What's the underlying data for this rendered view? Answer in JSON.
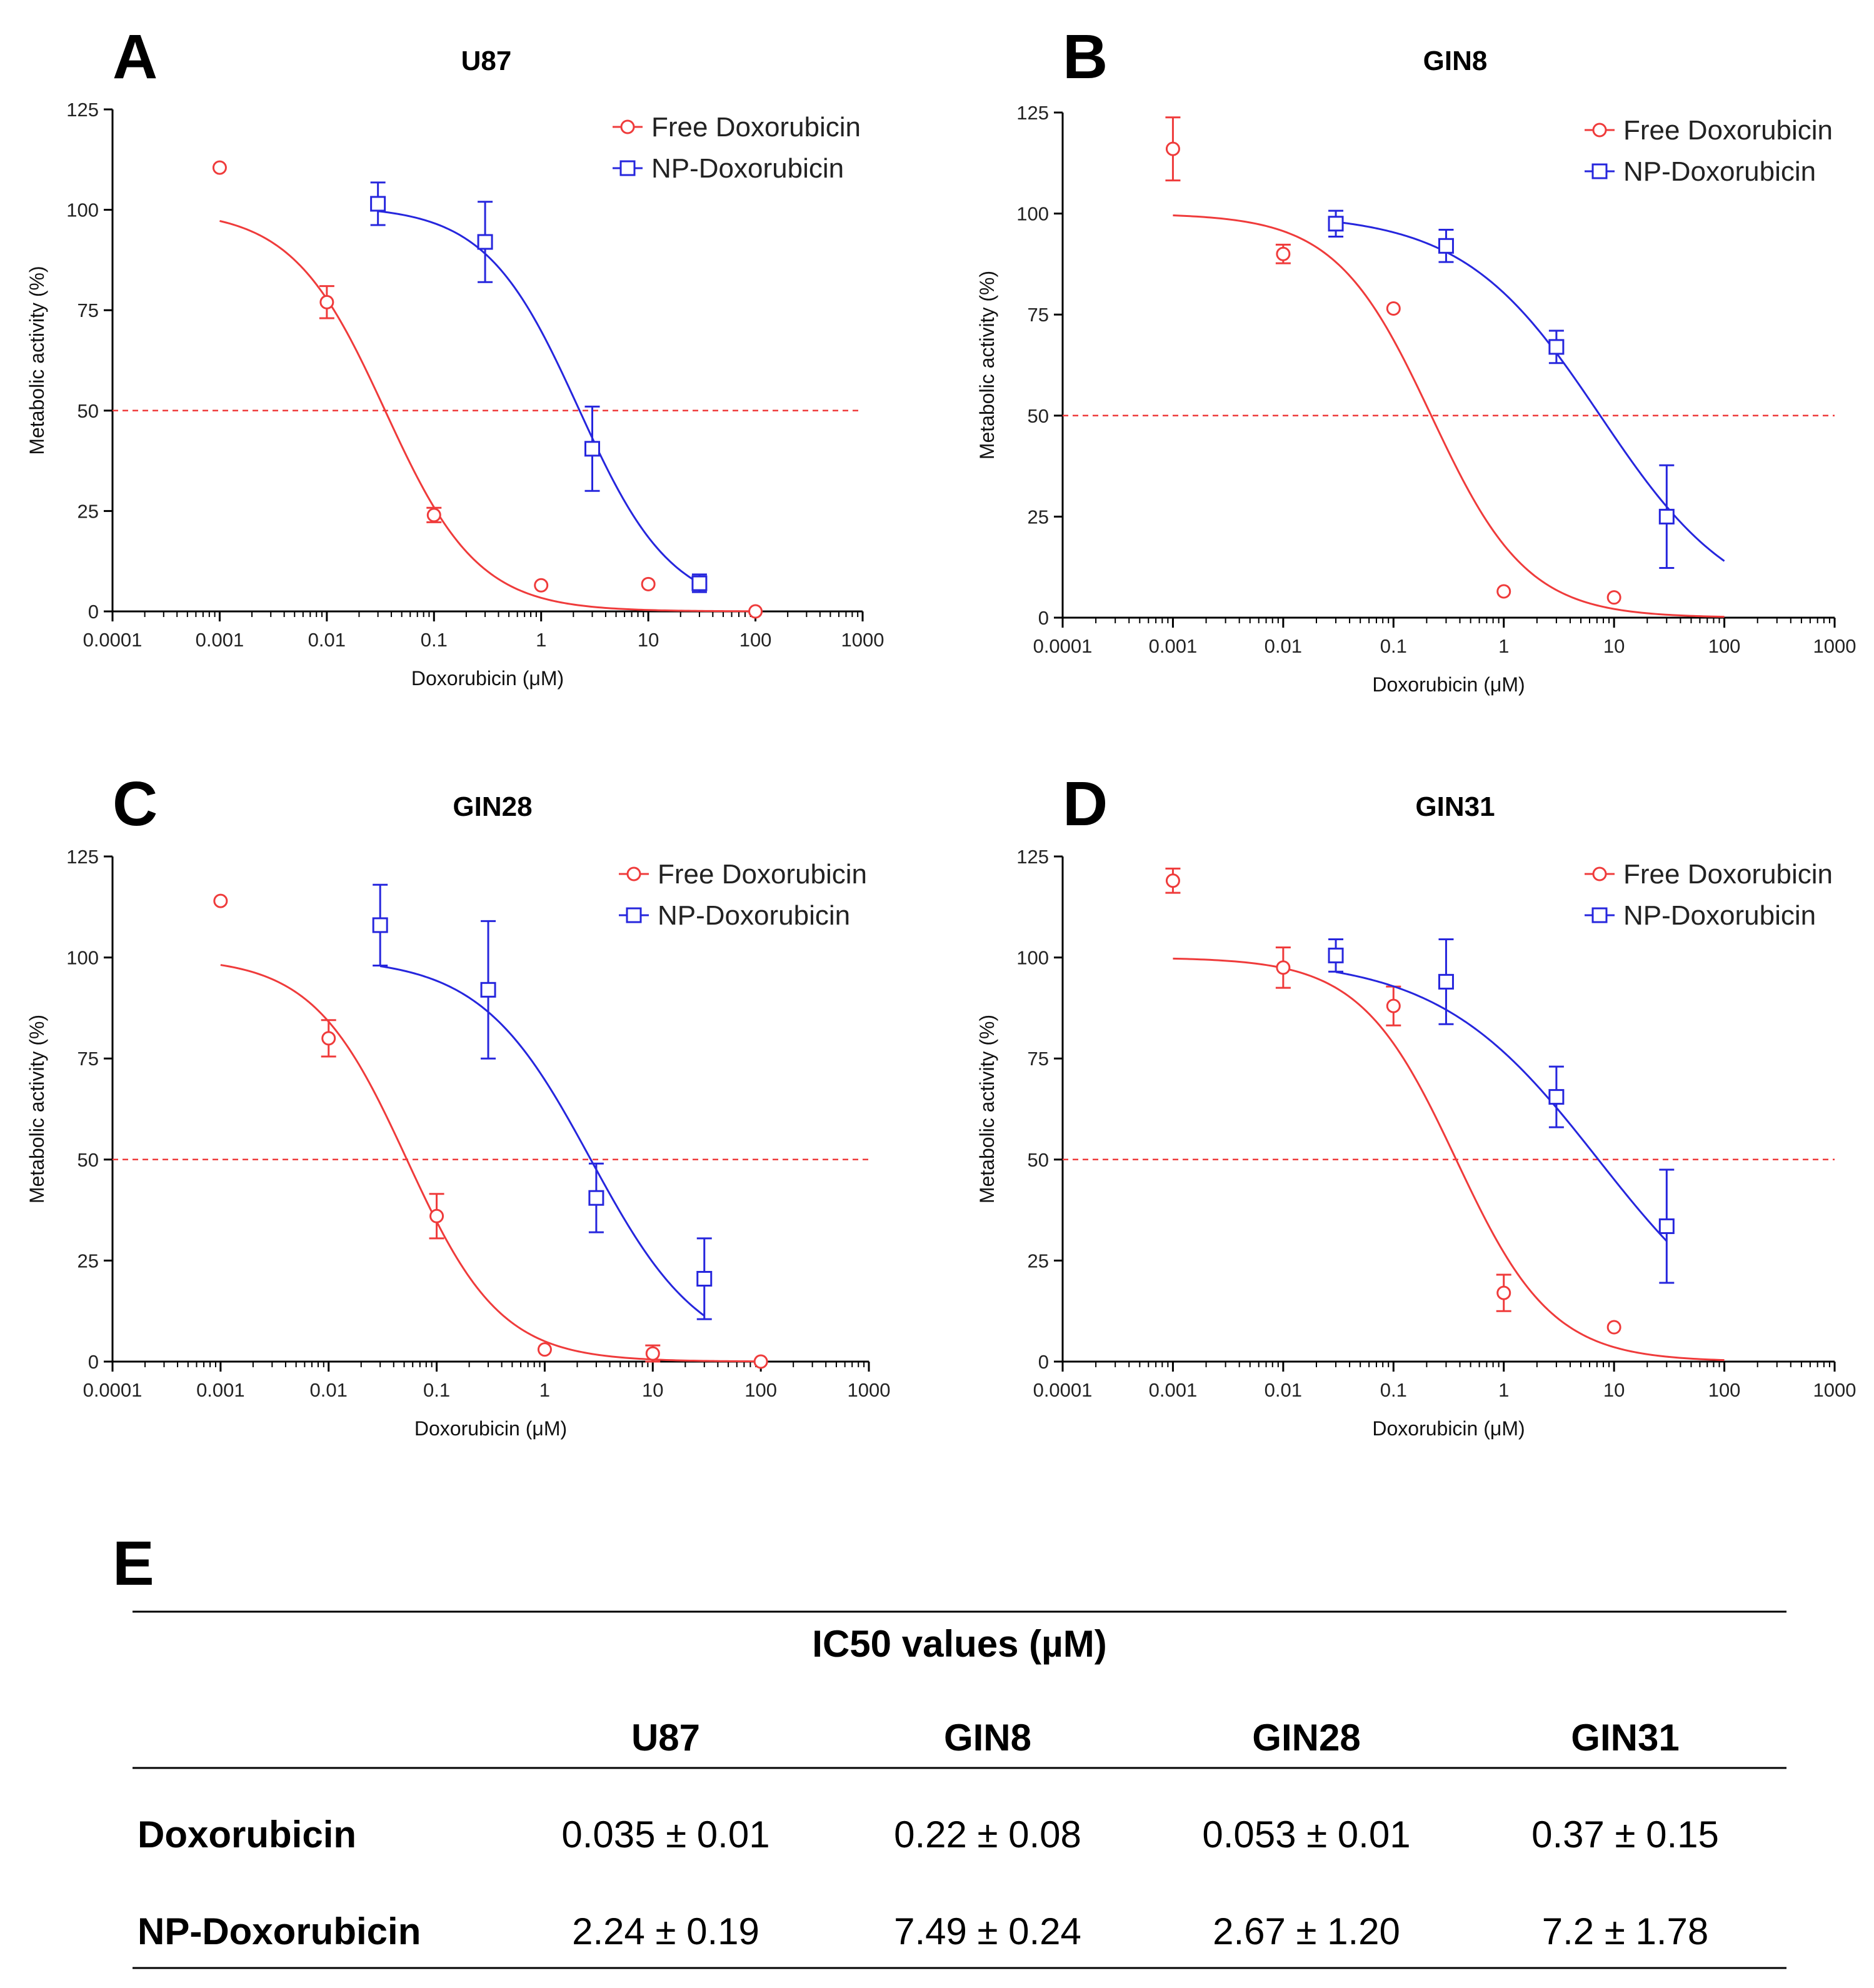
{
  "figure": {
    "colors": {
      "free": "#ef3b3b",
      "np": "#2626dd",
      "ref_line": "#ef3b3b",
      "axis": "#000000"
    }
  },
  "chart_data": [
    {
      "panel": "A",
      "type": "scatter",
      "title": "U87",
      "xlabel": "Doxorubicin (μM)",
      "ylabel": "Metabolic activity (%)",
      "xscale": "log",
      "xlim": [
        0.0001,
        1000
      ],
      "ylim": [
        0,
        125
      ],
      "xticks": [
        0.0001,
        0.001,
        0.01,
        0.1,
        1,
        10,
        100,
        1000
      ],
      "xtick_labels": [
        "0.0001",
        "0.001",
        "0.01",
        "0.1",
        "1",
        "10",
        "100",
        "1000"
      ],
      "yticks": [
        0,
        25,
        50,
        75,
        100,
        125
      ],
      "ytick_labels": [
        "0",
        "25",
        "50",
        "75",
        "100",
        "125"
      ],
      "reference_line": 50,
      "legend": "top-right",
      "series": [
        {
          "name": "Free Doxorubicin",
          "marker": "circle",
          "x": [
            0.001,
            0.01,
            0.1,
            1,
            10,
            100
          ],
          "y": [
            110.5,
            77,
            24,
            6.5,
            6.8,
            0
          ],
          "err": [
            0,
            4,
            1.8,
            0,
            0,
            0
          ],
          "fit": {
            "top": 100,
            "bottom": 0,
            "ic50": 0.035,
            "hill": 1,
            "xmin": 0.001,
            "xmax": 100
          }
        },
        {
          "name": "NP-Doxorubicin",
          "marker": "square",
          "x": [
            0.03,
            0.3,
            3,
            30
          ],
          "y": [
            101.5,
            92,
            40.5,
            7
          ],
          "err": [
            5.3,
            10,
            10.5,
            2.2
          ],
          "fit": {
            "top": 101,
            "bottom": 0,
            "ic50": 2.24,
            "hill": 1,
            "xmin": 0.03,
            "xmax": 30
          }
        }
      ]
    },
    {
      "panel": "B",
      "type": "scatter",
      "title": "GIN8",
      "xlabel": "Doxorubicin (μM)",
      "ylabel": "Metabolic activity (%)",
      "xscale": "log",
      "xlim": [
        0.0001,
        1000
      ],
      "ylim": [
        0,
        125
      ],
      "xticks": [
        0.0001,
        0.001,
        0.01,
        0.1,
        1,
        10,
        100,
        1000
      ],
      "xtick_labels": [
        "0.0001",
        "0.001",
        "0.01",
        "0.1",
        "1",
        "10",
        "100",
        "1000"
      ],
      "yticks": [
        0,
        25,
        50,
        75,
        100,
        125
      ],
      "ytick_labels": [
        "0",
        "25",
        "50",
        "75",
        "100",
        "125"
      ],
      "reference_line": 50,
      "legend": "top-right",
      "series": [
        {
          "name": "Free Doxorubicin",
          "marker": "circle",
          "x": [
            0.001,
            0.01,
            0.1,
            1,
            10
          ],
          "y": [
            116,
            90,
            76.5,
            6.5,
            5
          ],
          "err": [
            7.8,
            2.3,
            0,
            0,
            0
          ],
          "fit": {
            "top": 100,
            "bottom": 0,
            "ic50": 0.22,
            "hill": 1,
            "xmin": 0.001,
            "xmax": 100
          }
        },
        {
          "name": "NP-Doxorubicin",
          "marker": "square",
          "x": [
            0.03,
            0.3,
            3,
            30
          ],
          "y": [
            97.5,
            92,
            67,
            25
          ],
          "err": [
            3.2,
            4,
            4,
            12.7
          ],
          "fit": {
            "top": 100,
            "bottom": 0,
            "ic50": 7.49,
            "hill": 0.7,
            "xmin": 0.03,
            "xmax": 100
          }
        }
      ]
    },
    {
      "panel": "C",
      "type": "scatter",
      "title": "GIN28",
      "xlabel": "Doxorubicin (μM)",
      "ylabel": "Metabolic activity (%)",
      "xscale": "log",
      "xlim": [
        0.0001,
        1000
      ],
      "ylim": [
        0,
        125
      ],
      "xticks": [
        0.0001,
        0.001,
        0.01,
        0.1,
        1,
        10,
        100,
        1000
      ],
      "xtick_labels": [
        "0.0001",
        "0.001",
        "0.01",
        "0.1",
        "1",
        "10",
        "100",
        "1000"
      ],
      "yticks": [
        0,
        25,
        50,
        75,
        100,
        125
      ],
      "ytick_labels": [
        "0",
        "25",
        "50",
        "75",
        "100",
        "125"
      ],
      "reference_line": 50,
      "legend": "top-right",
      "series": [
        {
          "name": "Free Doxorubicin",
          "marker": "circle",
          "x": [
            0.001,
            0.01,
            0.1,
            1,
            10,
            100
          ],
          "y": [
            114,
            80,
            36,
            3,
            2,
            0
          ],
          "err": [
            0,
            4.5,
            5.5,
            0,
            2,
            0
          ],
          "fit": {
            "top": 100,
            "bottom": 0,
            "ic50": 0.053,
            "hill": 1,
            "xmin": 0.001,
            "xmax": 100
          }
        },
        {
          "name": "NP-Doxorubicin",
          "marker": "square",
          "x": [
            0.03,
            0.3,
            3,
            30
          ],
          "y": [
            108,
            92,
            40.5,
            20.5
          ],
          "err": [
            10,
            17,
            8.5,
            10
          ],
          "fit": {
            "top": 100,
            "bottom": 0,
            "ic50": 2.67,
            "hill": 0.85,
            "xmin": 0.03,
            "xmax": 30
          }
        }
      ]
    },
    {
      "panel": "D",
      "type": "scatter",
      "title": "GIN31",
      "xlabel": "Doxorubicin (μM)",
      "ylabel": "Metabolic activity (%)",
      "xscale": "log",
      "xlim": [
        0.0001,
        1000
      ],
      "ylim": [
        0,
        125
      ],
      "xticks": [
        0.0001,
        0.001,
        0.01,
        0.1,
        1,
        10,
        100,
        1000
      ],
      "xtick_labels": [
        "0.0001",
        "0.001",
        "0.01",
        "0.1",
        "1",
        "10",
        "100",
        "1000"
      ],
      "yticks": [
        0,
        25,
        50,
        75,
        100,
        125
      ],
      "ytick_labels": [
        "0",
        "25",
        "50",
        "75",
        "100",
        "125"
      ],
      "reference_line": 50,
      "legend": "top-right",
      "series": [
        {
          "name": "Free Doxorubicin",
          "marker": "circle",
          "x": [
            0.001,
            0.01,
            0.1,
            1,
            10
          ],
          "y": [
            119,
            97.5,
            88,
            17,
            8.5
          ],
          "err": [
            3,
            5,
            4.8,
            4.5,
            0
          ],
          "fit": {
            "top": 100,
            "bottom": 0,
            "ic50": 0.37,
            "hill": 1,
            "xmin": 0.001,
            "xmax": 100
          }
        },
        {
          "name": "NP-Doxorubicin",
          "marker": "square",
          "x": [
            0.03,
            0.3,
            3,
            30
          ],
          "y": [
            100.5,
            94,
            65.5,
            33.5
          ],
          "err": [
            4,
            10.5,
            7.5,
            14
          ],
          "fit": {
            "top": 100,
            "bottom": 0,
            "ic50": 7.2,
            "hill": 0.6,
            "xmin": 0.03,
            "xmax": 30
          }
        }
      ]
    }
  ],
  "table": {
    "panel": "E",
    "title": "IC50 values (µM)",
    "columns": [
      "U87",
      "GIN8",
      "GIN28",
      "GIN31"
    ],
    "rows": [
      {
        "label": "Doxorubicin",
        "values": [
          "0.035 ± 0.01",
          "0.22  ± 0.08",
          "0.053  ± 0.01",
          "0.37  ± 0.15"
        ]
      },
      {
        "label": "NP-Doxorubicin",
        "values": [
          "2.24  ± 0.19",
          "7.49  ± 0.24",
          "2.67  ± 1.20",
          "7.2  ± 1.78"
        ]
      }
    ]
  }
}
